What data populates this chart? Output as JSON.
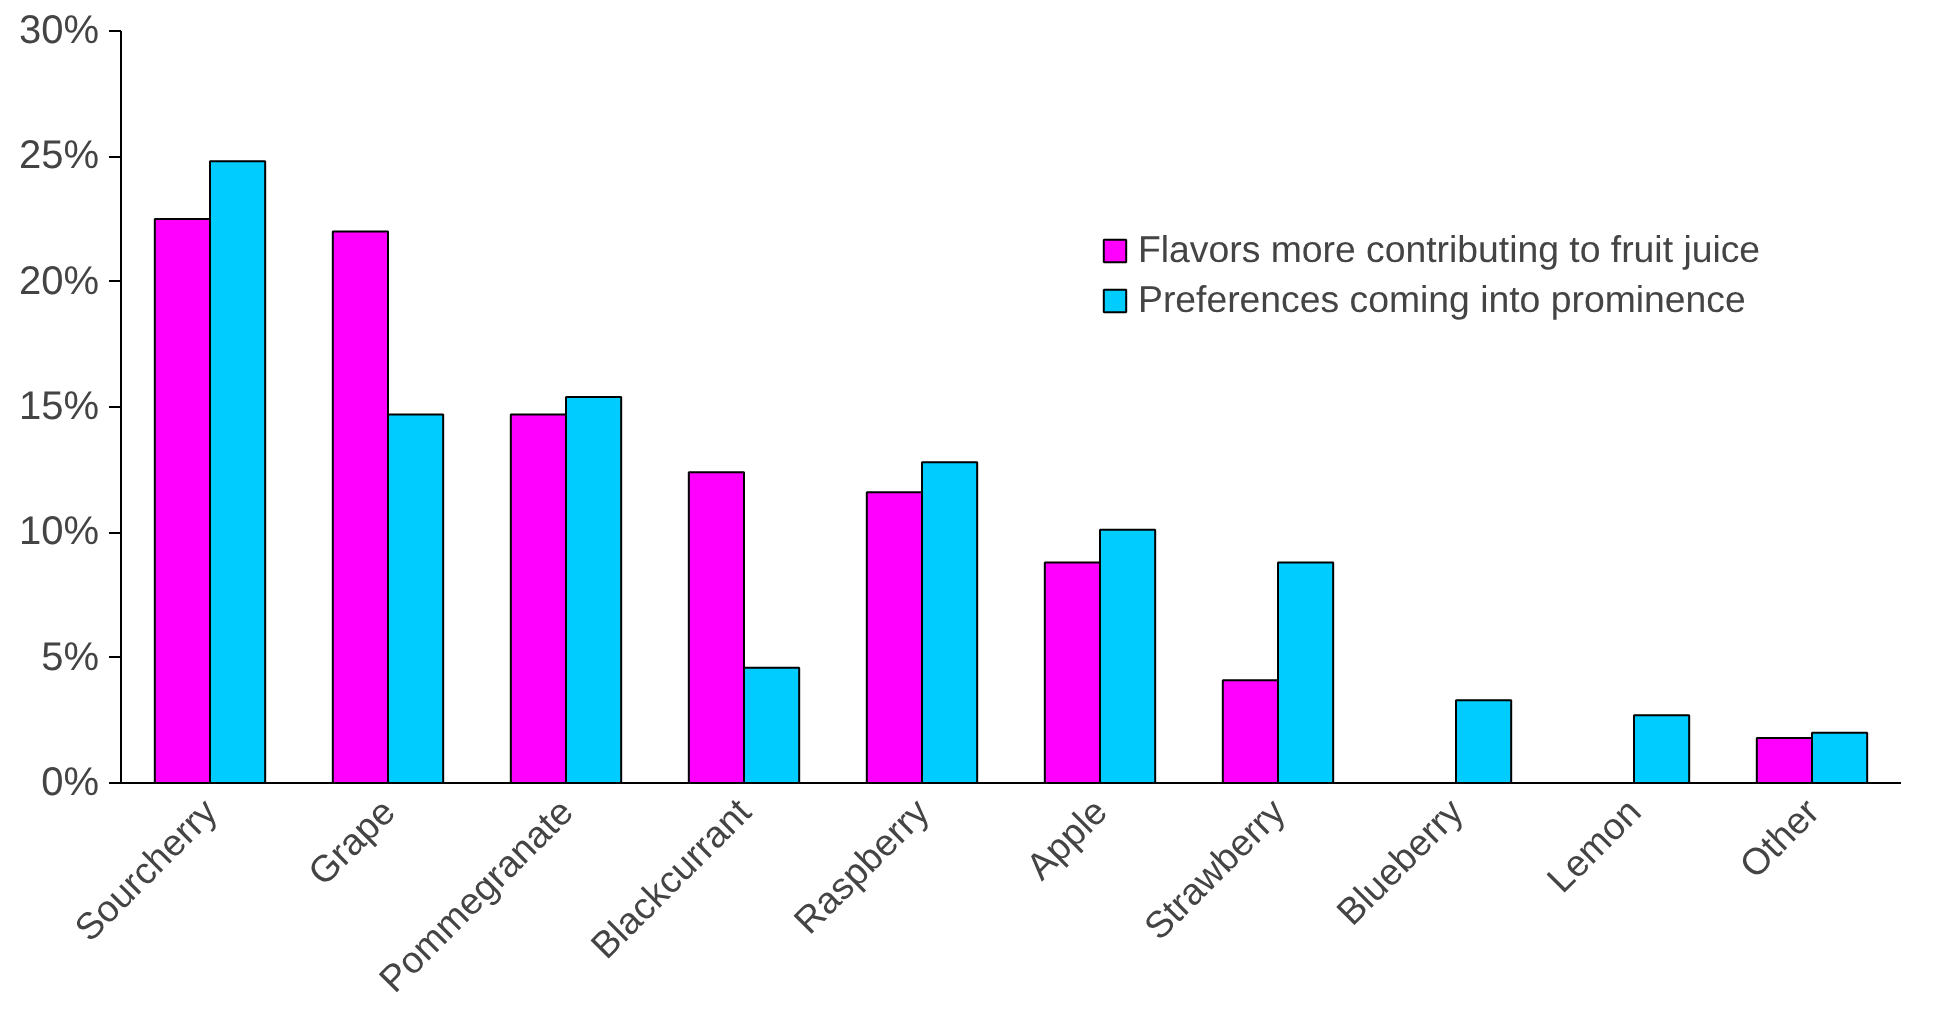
{
  "chart_data": {
    "type": "bar",
    "categories": [
      "Sourcherry",
      "Grape",
      "Pommegranate",
      "Blackcurrant",
      "Raspberry",
      "Apple",
      "Strawberry",
      "Blueberry",
      "Lemon",
      "Other"
    ],
    "series": [
      {
        "name": "Flavors more contributing to fruit juice",
        "color": "#ff00ff",
        "values": [
          22.5,
          22.0,
          14.7,
          12.4,
          11.6,
          8.8,
          4.1,
          null,
          null,
          1.8
        ]
      },
      {
        "name": "Preferences coming into prominence",
        "color": "#00ccff",
        "values": [
          24.8,
          14.7,
          15.4,
          4.6,
          12.8,
          10.1,
          8.8,
          3.3,
          2.7,
          2.0
        ]
      }
    ],
    "ylim": [
      0,
      30
    ],
    "yticks": [
      {
        "value": 0,
        "label": "0%"
      },
      {
        "value": 5,
        "label": "5%"
      },
      {
        "value": 10,
        "label": "10%"
      },
      {
        "value": 15,
        "label": "15%"
      },
      {
        "value": 20,
        "label": "20%"
      },
      {
        "value": 25,
        "label": "25%"
      },
      {
        "value": 30,
        "label": "30%"
      }
    ],
    "grid": false,
    "legend": "top right"
  }
}
